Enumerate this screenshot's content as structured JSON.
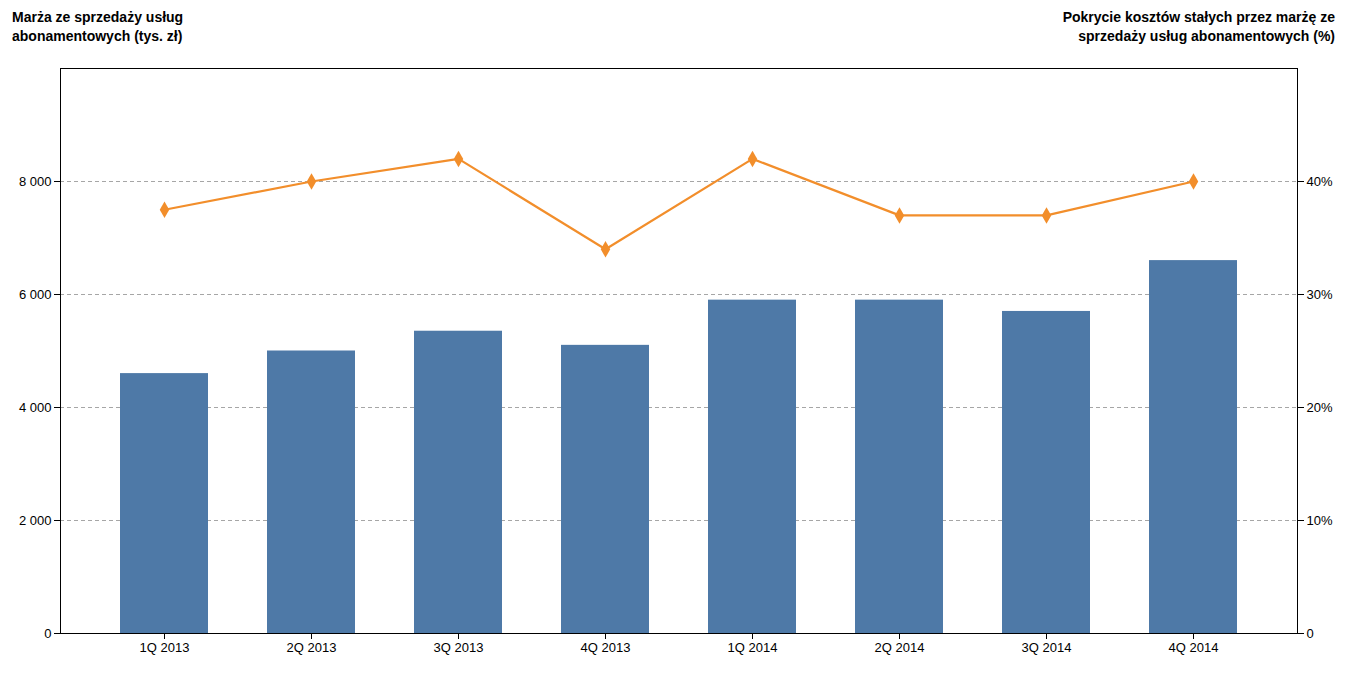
{
  "chart_data": {
    "type": "bar",
    "ylabel": "Marża ze sprzedaży usług\nabonamentowych (tys. zł)",
    "y2label": "Pokrycie kosztów stałych przez marżę ze\nsprzedaży usług abonamentowych (%)",
    "categories": [
      "1Q 2013",
      "2Q 2013",
      "3Q 2013",
      "4Q 2013",
      "1Q 2014",
      "2Q 2014",
      "3Q 2014",
      "4Q 2014"
    ],
    "series": [
      {
        "type": "bar",
        "color": "#4e79a7",
        "values": [
          4600,
          5000,
          5350,
          5100,
          5900,
          5900,
          5700,
          6600
        ]
      },
      {
        "type": "line",
        "axis": "y2",
        "color": "#f28e2b",
        "marker": "diamond",
        "values": [
          37.5,
          40,
          42,
          34,
          42,
          37,
          37,
          40
        ]
      }
    ],
    "ylim": [
      0,
      10000
    ],
    "yticks": [
      0,
      {
        "value": 2000,
        "label": "2 000"
      },
      {
        "value": 4000,
        "label": "4 000"
      },
      {
        "value": 6000,
        "label": "6 000"
      },
      {
        "value": 8000,
        "label": "8 000"
      }
    ],
    "y2lim": [
      0,
      50
    ],
    "y2ticks": [
      0,
      {
        "value": 10,
        "label": "10%"
      },
      {
        "value": 20,
        "label": "20%"
      },
      {
        "value": 30,
        "label": "30%"
      },
      {
        "value": 40,
        "label": "40%"
      }
    ],
    "grid": true
  }
}
